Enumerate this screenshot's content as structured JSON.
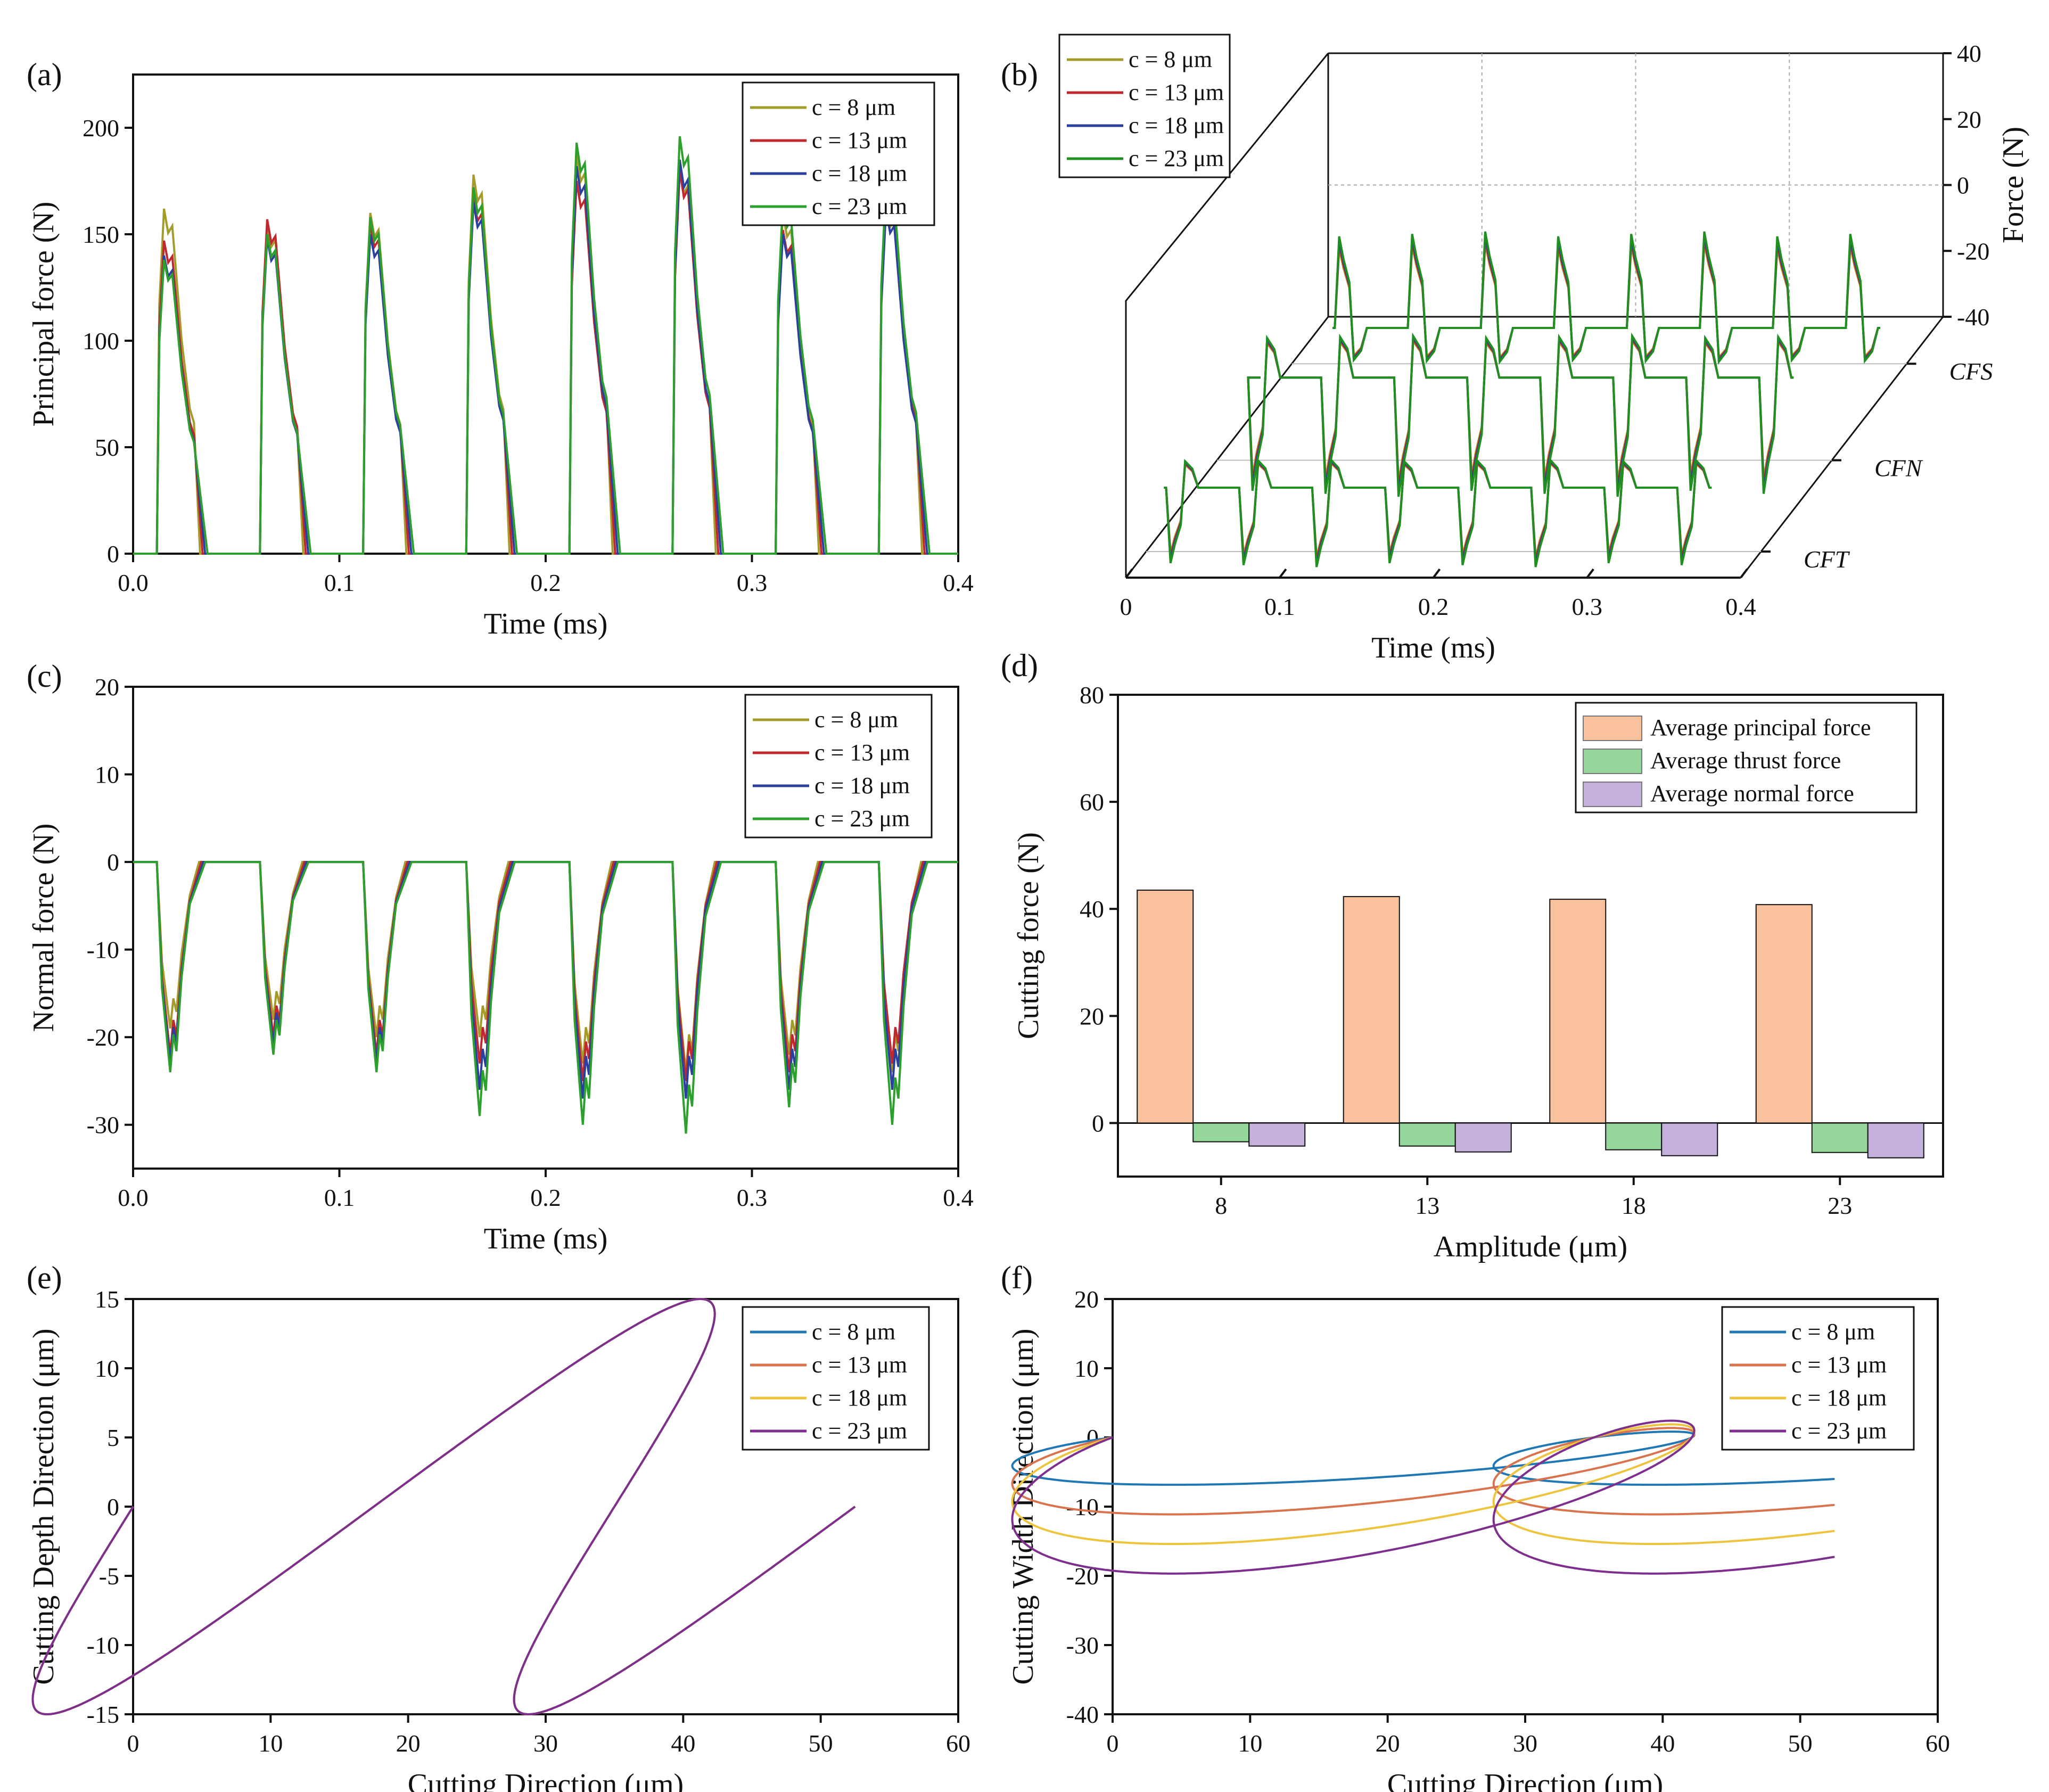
{
  "panels": {
    "a": {
      "label": "(a)",
      "chart_data": {
        "type": "line",
        "xlabel": "Time (ms)",
        "ylabel": "Principal force (N)",
        "xlim": [
          0,
          0.4
        ],
        "ylim": [
          0,
          225
        ],
        "xticks": [
          "0.0",
          "0.1",
          "0.2",
          "0.3",
          "0.4"
        ],
        "yticks": [
          "0",
          "50",
          "100",
          "150",
          "200"
        ],
        "legend": "top-right",
        "series": [
          {
            "name": "c = 8 μm",
            "color": "#a39b2a",
            "peaks": [
              162,
              155,
              160,
              178,
              188,
              182,
              160,
              165
            ]
          },
          {
            "name": "c = 13 μm",
            "color": "#c1272d",
            "peaks": [
              147,
              157,
              155,
              168,
              175,
              180,
              152,
              168
            ]
          },
          {
            "name": "c = 18 μm",
            "color": "#2b3f9e",
            "peaks": [
              140,
              148,
              150,
              165,
              182,
              185,
              150,
              162
            ]
          },
          {
            "name": "c = 23 μm",
            "color": "#2ca02c",
            "peaks": [
              138,
              150,
              158,
              172,
              193,
              196,
              165,
              175
            ]
          }
        ]
      }
    },
    "b": {
      "label": "(b)",
      "chart_data": {
        "type": "line",
        "xlabel": "Time (ms)",
        "zlabel": "Force (N)",
        "xlim": [
          0,
          0.4
        ],
        "zlim": [
          -40,
          40
        ],
        "xticks": [
          "0",
          "0.1",
          "0.2",
          "0.3",
          "0.4"
        ],
        "zticks": [
          "40",
          "20",
          "0",
          "-20",
          "-40"
        ],
        "depth_categories": [
          "CFS",
          "CFN",
          "CFT"
        ],
        "legend": "top-left",
        "series": [
          {
            "name": "c = 8 μm",
            "color": "#a39b2a"
          },
          {
            "name": "c = 13 μm",
            "color": "#c1272d"
          },
          {
            "name": "c = 18 μm",
            "color": "#2b3f9e"
          },
          {
            "name": "c = 23 μm",
            "color": "#1f8f1f"
          }
        ]
      }
    },
    "c": {
      "label": "(c)",
      "chart_data": {
        "type": "line",
        "xlabel": "Time (ms)",
        "ylabel": "Normal force (N)",
        "xlim": [
          0,
          0.4
        ],
        "ylim": [
          -35,
          20
        ],
        "xticks": [
          "0.0",
          "0.1",
          "0.2",
          "0.3",
          "0.4"
        ],
        "yticks": [
          "20",
          "10",
          "0",
          "-10",
          "-20",
          "-30"
        ],
        "legend": "top-right",
        "series": [
          {
            "name": "c = 8 μm",
            "color": "#a39b2a",
            "troughs": [
              -19,
              -18,
              -20,
              -20,
              -23,
              -24,
              -22,
              -24
            ]
          },
          {
            "name": "c = 13 μm",
            "color": "#c1272d",
            "troughs": [
              -22,
              -20,
              -22,
              -23,
              -25,
              -25,
              -24,
              -23
            ]
          },
          {
            "name": "c = 18 μm",
            "color": "#2b3f9e",
            "troughs": [
              -23,
              -21,
              -23,
              -26,
              -27,
              -27,
              -26,
              -26
            ]
          },
          {
            "name": "c = 23 μm",
            "color": "#2ca02c",
            "troughs": [
              -24,
              -22,
              -24,
              -29,
              -30,
              -31,
              -28,
              -30
            ]
          }
        ]
      }
    },
    "d": {
      "label": "(d)",
      "chart_data": {
        "type": "bar",
        "xlabel": "Amplitude (μm)",
        "ylabel": "Cutting force (N)",
        "ylim": [
          -10,
          80
        ],
        "yticks": [
          "80",
          "60",
          "40",
          "20",
          "0"
        ],
        "categories": [
          "8",
          "13",
          "18",
          "23"
        ],
        "legend": "top-right",
        "series": [
          {
            "name": "Average principal  force",
            "color": "#f9c29c",
            "values": [
              43.5,
              42.3,
              41.8,
              40.8
            ]
          },
          {
            "name": "Average thrust force",
            "color": "#95d79a",
            "values": [
              -3.5,
              -4.3,
              -5.0,
              -5.5
            ]
          },
          {
            "name": "Average normal force",
            "color": "#c3b0dd",
            "values": [
              -4.3,
              -5.4,
              -6.1,
              -6.5
            ]
          }
        ]
      }
    },
    "e": {
      "label": "(e)",
      "chart_data": {
        "type": "line",
        "xlabel": "Cutting Direction (μm)",
        "ylabel": "Cutting Depth Direction (μm)",
        "xlim": [
          0,
          60
        ],
        "ylim": [
          -15,
          15
        ],
        "xticks": [
          "0",
          "10",
          "20",
          "30",
          "40",
          "50",
          "60"
        ],
        "yticks": [
          "15",
          "10",
          "5",
          "0",
          "-5",
          "-10",
          "-15"
        ],
        "legend": "top-right",
        "series": [
          {
            "name": "c = 8 μm",
            "color": "#1f77b4"
          },
          {
            "name": "c = 13 μm",
            "color": "#d9734e"
          },
          {
            "name": "c = 18 μm",
            "color": "#edc43e"
          },
          {
            "name": "c = 23 μm",
            "color": "#7e2f8e"
          }
        ]
      }
    },
    "f": {
      "label": "(f)",
      "chart_data": {
        "type": "line",
        "xlabel": "Cutting Direction (μm)",
        "ylabel": "Cutting Width Direction (μm)",
        "xlim": [
          0,
          60
        ],
        "ylim": [
          -40,
          20
        ],
        "xticks": [
          "0",
          "10",
          "20",
          "30",
          "40",
          "50",
          "60"
        ],
        "yticks": [
          "20",
          "10",
          "0",
          "-10",
          "-20",
          "-30",
          "-40"
        ],
        "legend": "top-right",
        "series": [
          {
            "name": "c = 8 μm",
            "color": "#1f77b4",
            "amplitude": 8
          },
          {
            "name": "c = 13 μm",
            "color": "#d9734e",
            "amplitude": 13
          },
          {
            "name": "c = 18 μm",
            "color": "#edc43e",
            "amplitude": 18
          },
          {
            "name": "c = 23 μm",
            "color": "#7e2f8e",
            "amplitude": 23
          }
        ]
      }
    }
  }
}
